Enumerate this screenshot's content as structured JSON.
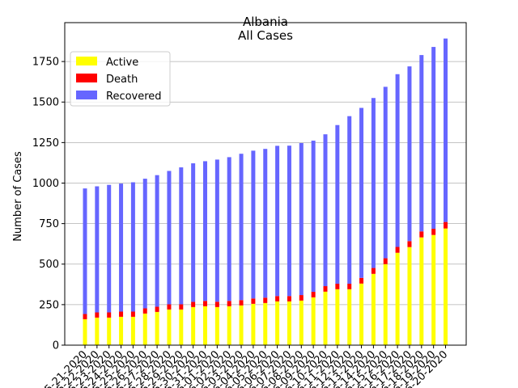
{
  "chart_data": {
    "type": "bar",
    "stacked": true,
    "title": "Albania",
    "subtitle": "All Cases",
    "xlabel": "",
    "ylabel": "Number of Cases",
    "ylim": [
      0,
      1990
    ],
    "yticks": [
      0,
      250,
      500,
      750,
      1000,
      1250,
      1500,
      1750
    ],
    "grid": "y",
    "legend_position": "top-left",
    "categories": [
      "05-21-2020",
      "05-22-2020",
      "05-23-2020",
      "05-24-2020",
      "05-25-2020",
      "05-26-2020",
      "05-27-2020",
      "05-28-2020",
      "05-29-2020",
      "05-30-2020",
      "05-31-2020",
      "06-01-2020",
      "06-02-2020",
      "06-03-2020",
      "06-04-2020",
      "06-05-2020",
      "06-06-2020",
      "06-07-2020",
      "06-08-2020",
      "06-09-2020",
      "06-10-2020",
      "06-11-2020",
      "06-12-2020",
      "06-13-2020",
      "06-14-2020",
      "06-15-2020",
      "06-16-2020",
      "06-17-2020",
      "06-18-2020",
      "06-19-2020",
      "06-20-2020"
    ],
    "series": [
      {
        "name": "Active",
        "color": "#ffff00",
        "values": [
          160,
          170,
          170,
          175,
          175,
          195,
          205,
          220,
          220,
          235,
          240,
          235,
          240,
          245,
          255,
          260,
          270,
          270,
          275,
          295,
          330,
          345,
          345,
          380,
          440,
          500,
          570,
          605,
          665,
          680,
          720
        ]
      },
      {
        "name": "Death",
        "color": "#ff0000",
        "values": [
          32,
          32,
          32,
          32,
          32,
          32,
          32,
          32,
          32,
          32,
          33,
          33,
          33,
          33,
          33,
          33,
          33,
          33,
          34,
          34,
          34,
          34,
          34,
          35,
          36,
          36,
          36,
          37,
          37,
          38,
          40
        ]
      },
      {
        "name": "Recovered",
        "color": "#6666ff",
        "values": [
          775,
          778,
          787,
          790,
          798,
          800,
          812,
          823,
          845,
          855,
          862,
          877,
          887,
          903,
          912,
          918,
          927,
          928,
          938,
          933,
          937,
          979,
          1034,
          1049,
          1049,
          1058,
          1066,
          1078,
          1088,
          1122,
          1132
        ]
      }
    ]
  }
}
